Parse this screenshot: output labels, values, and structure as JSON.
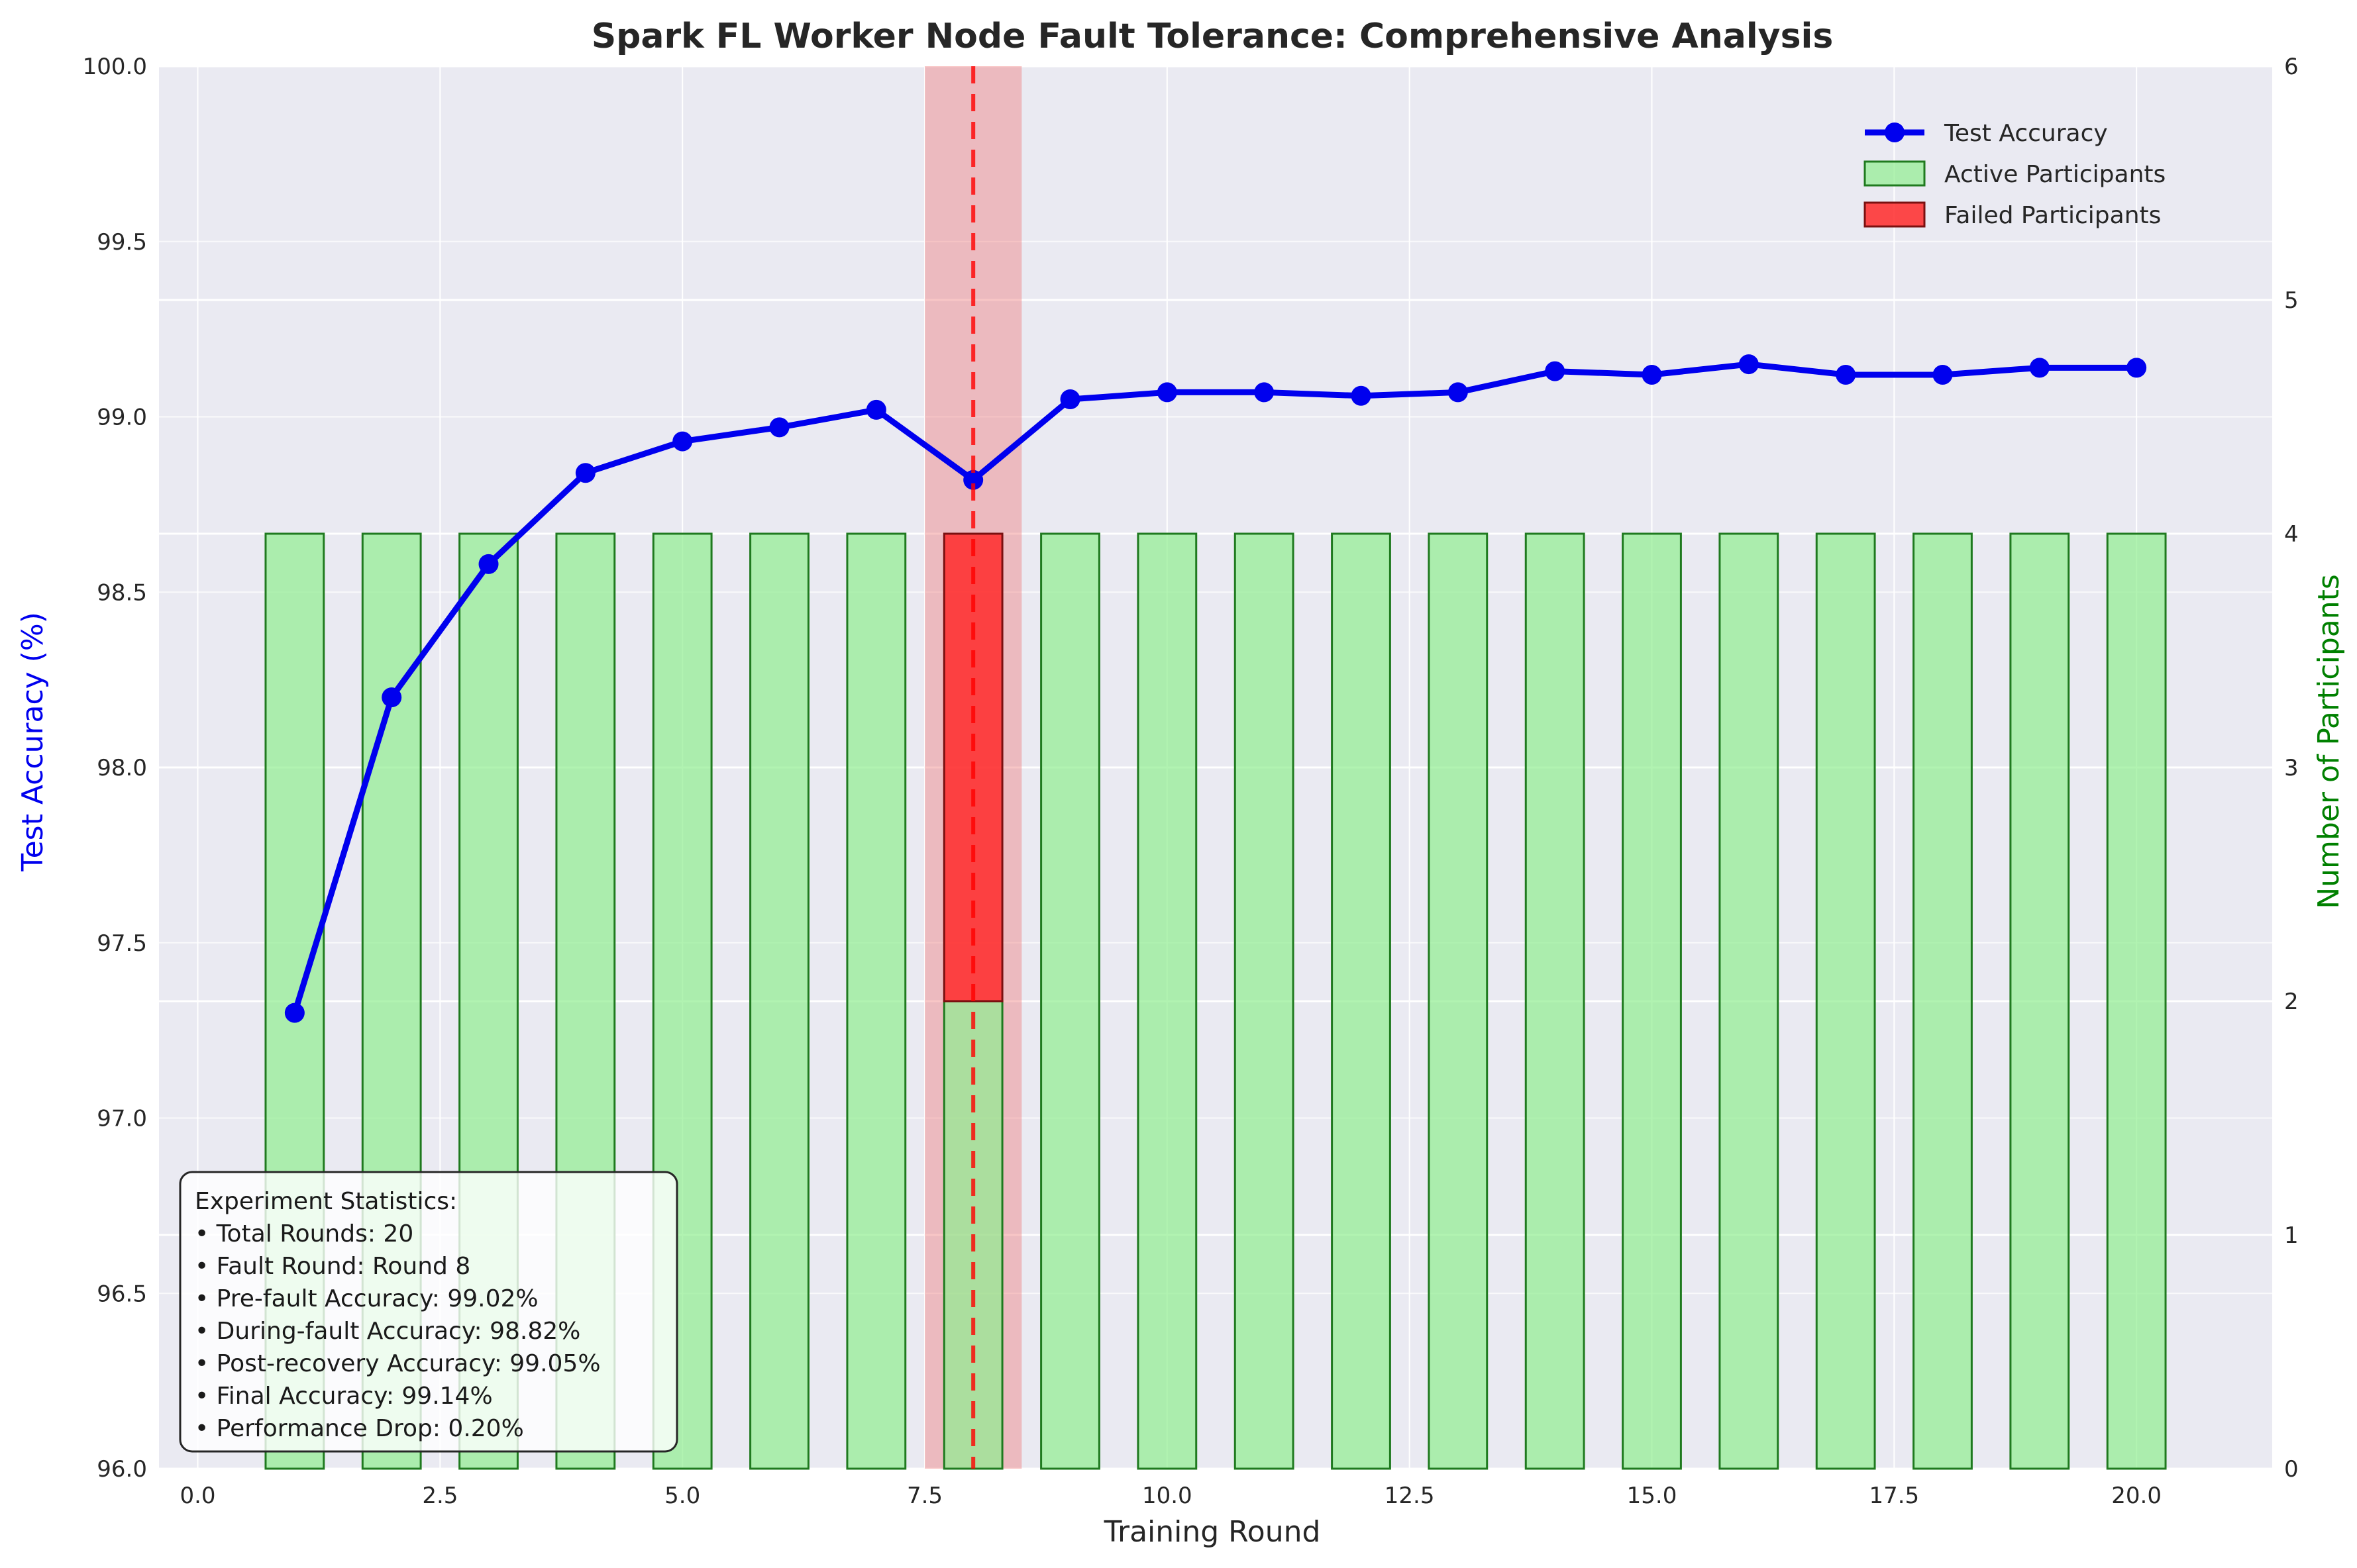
{
  "chart_data": {
    "type": "bar+line",
    "title": "Spark FL Worker Node Fault Tolerance: Comprehensive Analysis",
    "xlabel": "Training Round",
    "ylabel_left": "Test Accuracy (%)",
    "ylabel_right": "Number of Participants",
    "xlim": [
      -0.4,
      21.4
    ],
    "ylim_left": [
      96.0,
      100.0
    ],
    "ylim_right": [
      0,
      6
    ],
    "x_ticks": [
      "0.0",
      "2.5",
      "5.0",
      "7.5",
      "10.0",
      "12.5",
      "15.0",
      "17.5",
      "20.0"
    ],
    "y_left_ticks": [
      "96.0",
      "96.5",
      "97.0",
      "97.5",
      "98.0",
      "98.5",
      "99.0",
      "99.5",
      "100.0"
    ],
    "y_right_ticks": [
      "0",
      "1",
      "2",
      "3",
      "4",
      "5",
      "6"
    ],
    "grid": true,
    "legend_position": "upper right",
    "rounds": [
      1,
      2,
      3,
      4,
      5,
      6,
      7,
      8,
      9,
      10,
      11,
      12,
      13,
      14,
      15,
      16,
      17,
      18,
      19,
      20
    ],
    "series": [
      {
        "name": "Test Accuracy",
        "kind": "line",
        "axis": "left",
        "color": "#0000ee",
        "values": [
          97.3,
          98.2,
          98.58,
          98.84,
          98.93,
          98.97,
          99.02,
          98.82,
          99.05,
          99.07,
          99.07,
          99.06,
          99.07,
          99.13,
          99.12,
          99.15,
          99.12,
          99.12,
          99.14,
          99.14
        ]
      },
      {
        "name": "Active Participants",
        "kind": "bar",
        "axis": "right",
        "color": "#90ee90",
        "edge_color": "#1f7a1f",
        "values": [
          4,
          4,
          4,
          4,
          4,
          4,
          4,
          2,
          4,
          4,
          4,
          4,
          4,
          4,
          4,
          4,
          4,
          4,
          4,
          4
        ]
      },
      {
        "name": "Failed Participants",
        "kind": "bar",
        "axis": "right",
        "stacked_on": "Active Participants",
        "color": "#ff2a2a",
        "edge_color": "#7a1010",
        "values": [
          0,
          0,
          0,
          0,
          0,
          0,
          0,
          2,
          0,
          0,
          0,
          0,
          0,
          0,
          0,
          0,
          0,
          0,
          0,
          0
        ]
      }
    ],
    "fault_round": 8,
    "fault_span": [
      7.5,
      8.5
    ],
    "stats_box": {
      "lines": [
        "Experiment Statistics:",
        "• Total Rounds: 20",
        "• Fault Round: Round 8",
        "• Pre-fault Accuracy: 99.02%",
        "• During-fault Accuracy: 98.82%",
        "• Post-recovery Accuracy: 99.05%",
        "• Final Accuracy: 99.14%",
        "• Performance Drop: 0.20%"
      ]
    },
    "colors": {
      "plot_background": "#eaeaf2",
      "grid": "#ffffff",
      "left_axis_label": "#0000ee",
      "right_axis_label": "#008000",
      "fault_span": "#f08080",
      "fault_line": "#ff0000"
    }
  }
}
